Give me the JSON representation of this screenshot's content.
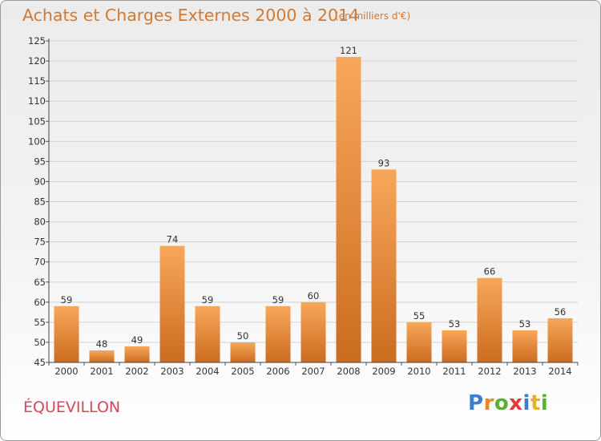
{
  "header": {
    "title": "Achats et Charges Externes 2000 à 2014",
    "unit": "(en milliers d'€)"
  },
  "footer": {
    "commune": "ÉQUEVILLON",
    "brand_letters": [
      "P",
      "r",
      "o",
      "x",
      "i",
      "t",
      "i"
    ]
  },
  "colors": {
    "title": "#d07a35",
    "commune": "#d24a5a",
    "bar_light": "#f8a75a",
    "bar_dark": "#cb6c1f",
    "brand": [
      "#3a7fd0",
      "#e8862a",
      "#5bb030",
      "#e03a3a",
      "#3a7fd0",
      "#e8b020",
      "#5bb030"
    ]
  },
  "chart_data": {
    "type": "bar",
    "categories": [
      "2000",
      "2001",
      "2002",
      "2003",
      "2004",
      "2005",
      "2006",
      "2007",
      "2008",
      "2009",
      "2010",
      "2011",
      "2012",
      "2013",
      "2014"
    ],
    "values": [
      59,
      48,
      49,
      74,
      59,
      50,
      59,
      60,
      121,
      93,
      55,
      53,
      66,
      53,
      56
    ],
    "title": "Achats et Charges Externes 2000 à 2014",
    "ylim": [
      45,
      125
    ],
    "yticks": [
      45,
      50,
      55,
      60,
      65,
      70,
      75,
      80,
      85,
      90,
      95,
      100,
      105,
      110,
      115,
      120,
      125
    ],
    "grid": true,
    "legend": "none"
  }
}
